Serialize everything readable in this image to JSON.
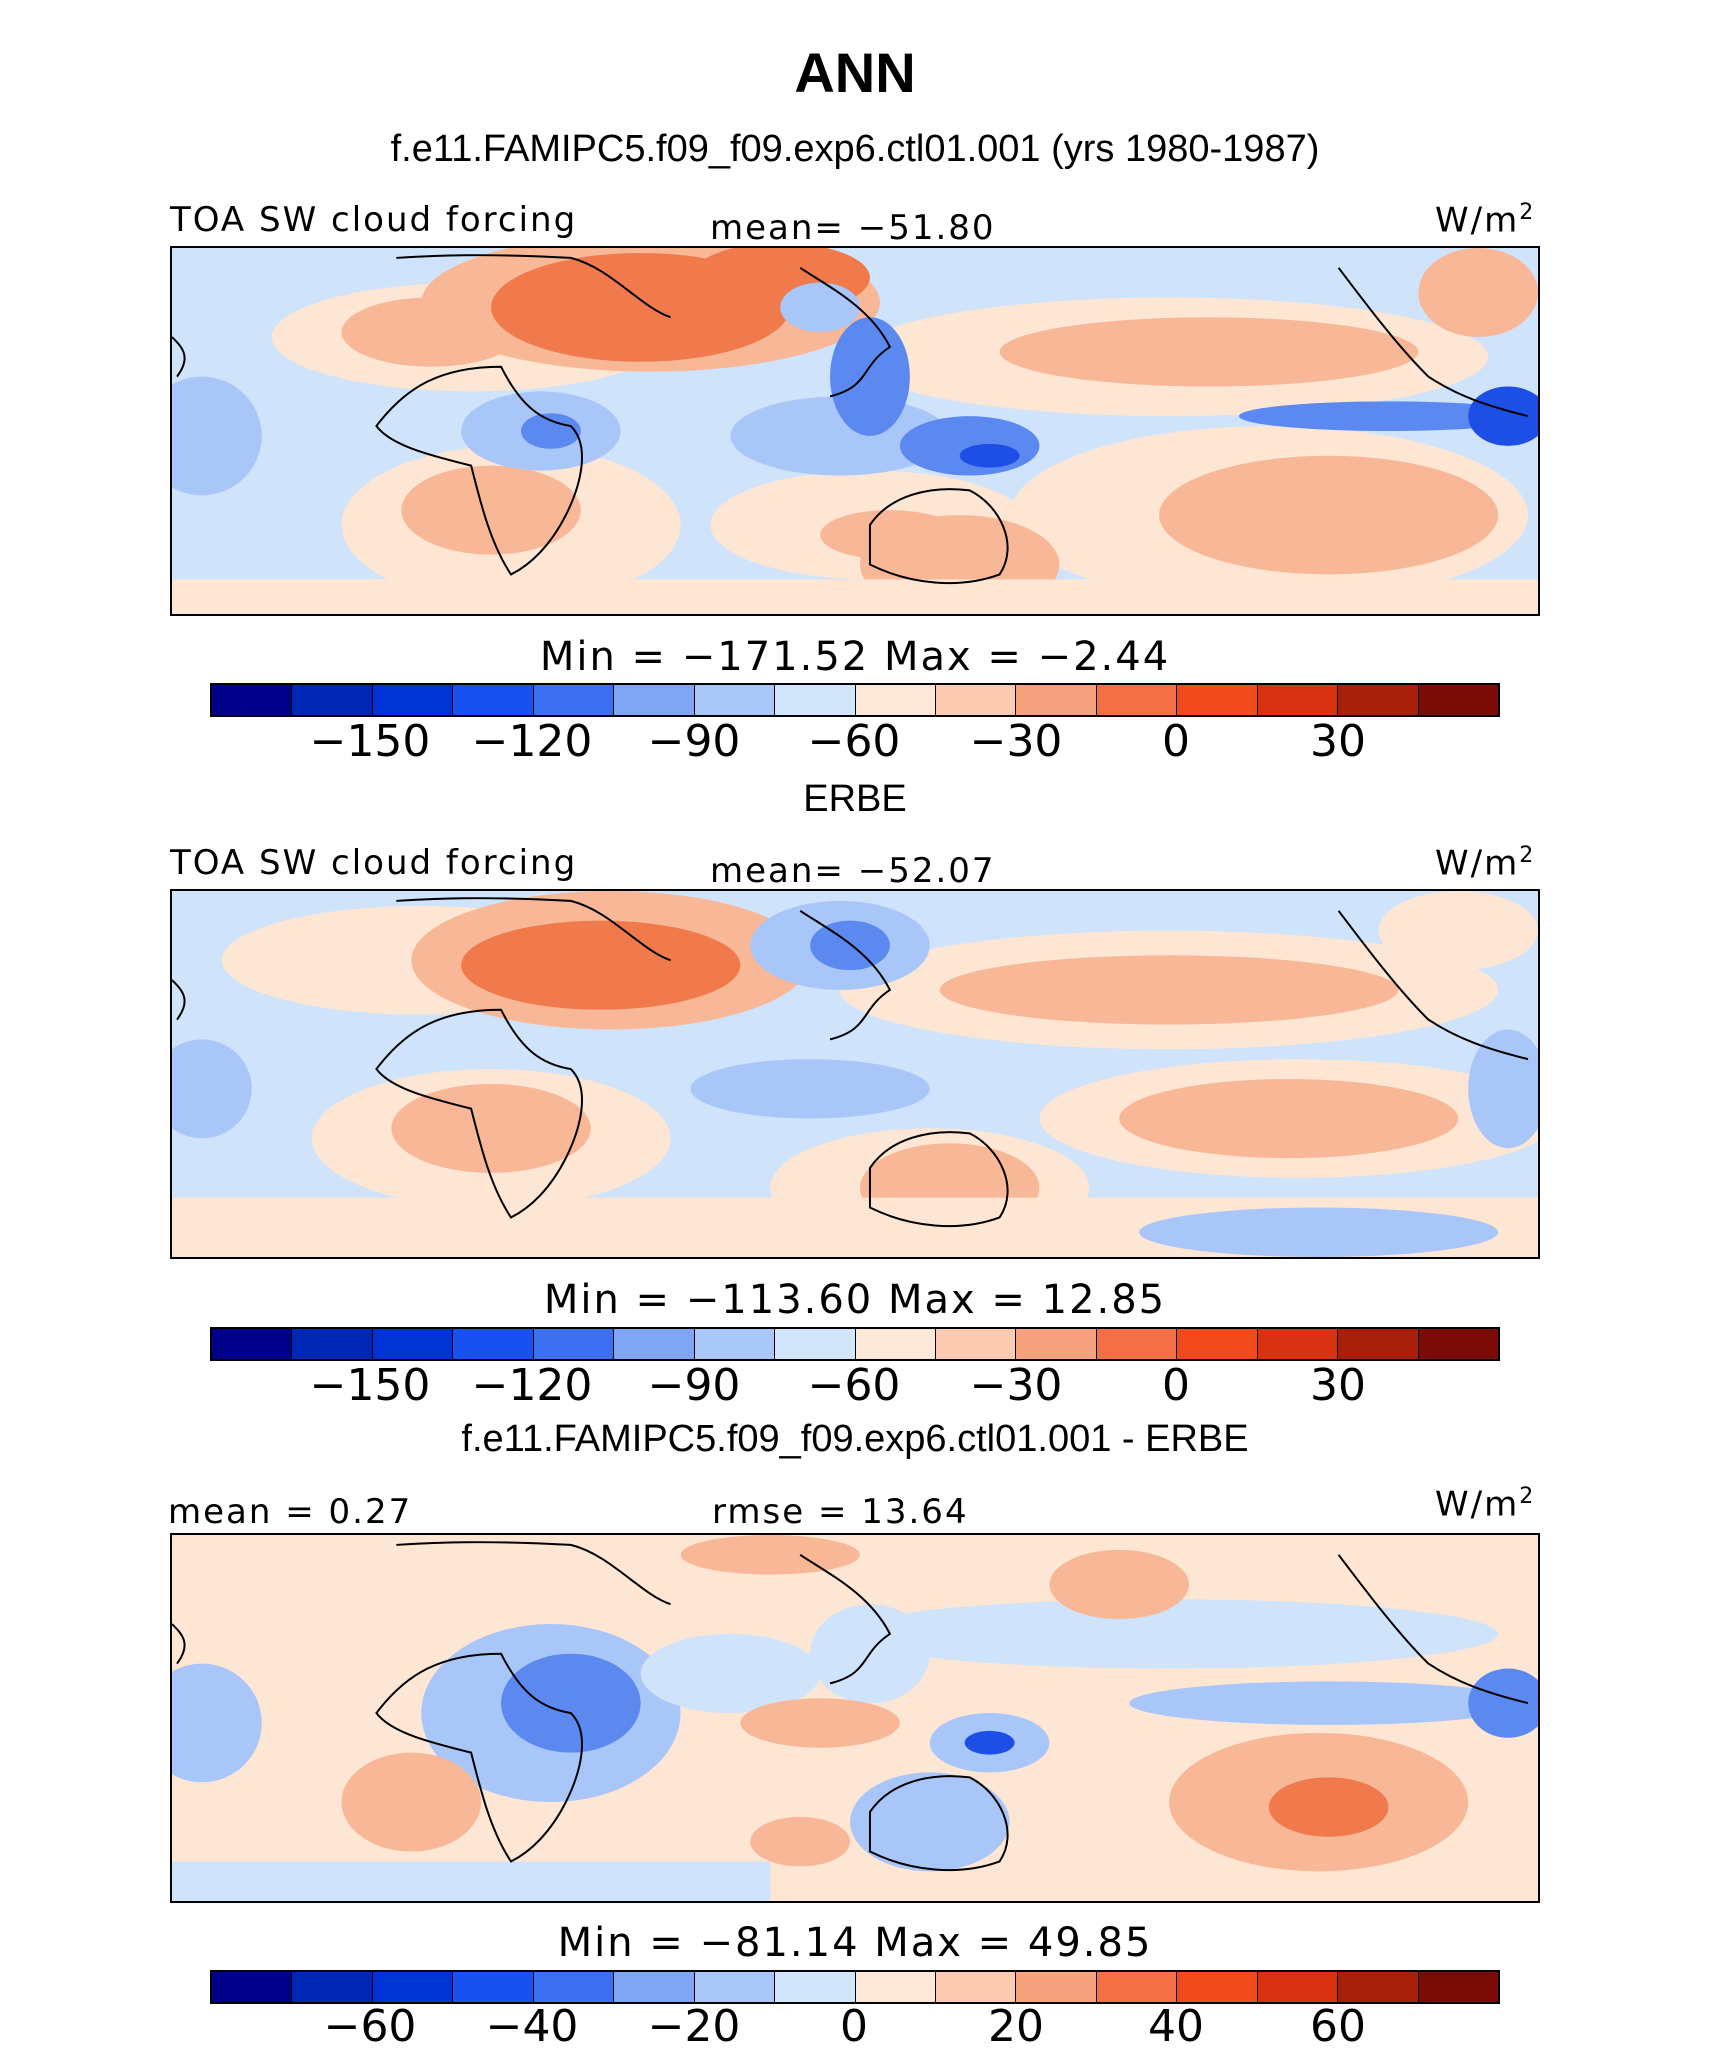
{
  "header": {
    "title": "ANN",
    "subtitle": "f.e11.FAMIPC5.f09_f09.exp6.ctl01.001 (yrs 1980-1987)"
  },
  "panels": [
    {
      "left_label": "TOA SW cloud forcing",
      "center_label": "mean=  −51.80",
      "units": "W/m",
      "units_sup": "2",
      "minmax": "Min  =  −171.52  Max  =    −2.44",
      "ticks": [
        "−150",
        "−120",
        "−90",
        "−60",
        "−30",
        "0",
        "30"
      ]
    },
    {
      "section_title": "ERBE",
      "left_label": "TOA SW cloud forcing",
      "center_label": "mean=  −52.07",
      "units": "W/m",
      "units_sup": "2",
      "minmax": "Min  =  −113.60  Max  =    12.85",
      "ticks": [
        "−150",
        "−120",
        "−90",
        "−60",
        "−30",
        "0",
        "30"
      ]
    },
    {
      "section_title": "f.e11.FAMIPC5.f09_f09.exp6.ctl01.001 - ERBE",
      "left_label": "mean  =    0.27",
      "center_label": "rmse  =   13.64",
      "units": "W/m",
      "units_sup": "2",
      "minmax": "Min  =  −81.14  Max  =    49.85",
      "ticks": [
        "−60",
        "−40",
        "−20",
        "0",
        "20",
        "40",
        "60"
      ]
    }
  ],
  "colorbar_colors": [
    "#00008b",
    "#0026b4",
    "#0034d6",
    "#1752f0",
    "#3d6ff2",
    "#7ea6f5",
    "#a9c6f8",
    "#d2e6fb",
    "#fde8d8",
    "#fbcab0",
    "#f7a17e",
    "#f56f45",
    "#f24a1c",
    "#d93212",
    "#a8200c",
    "#7b0b06"
  ],
  "colors": {
    "neg_light": "#cfe3fb",
    "neg_mid": "#a9c6f8",
    "neg_strong": "#5b89ef",
    "neg_deep": "#1d4fe6",
    "pos_light": "#fde6d4",
    "pos_mid": "#f8b897",
    "pos_strong": "#f07a4c"
  }
}
